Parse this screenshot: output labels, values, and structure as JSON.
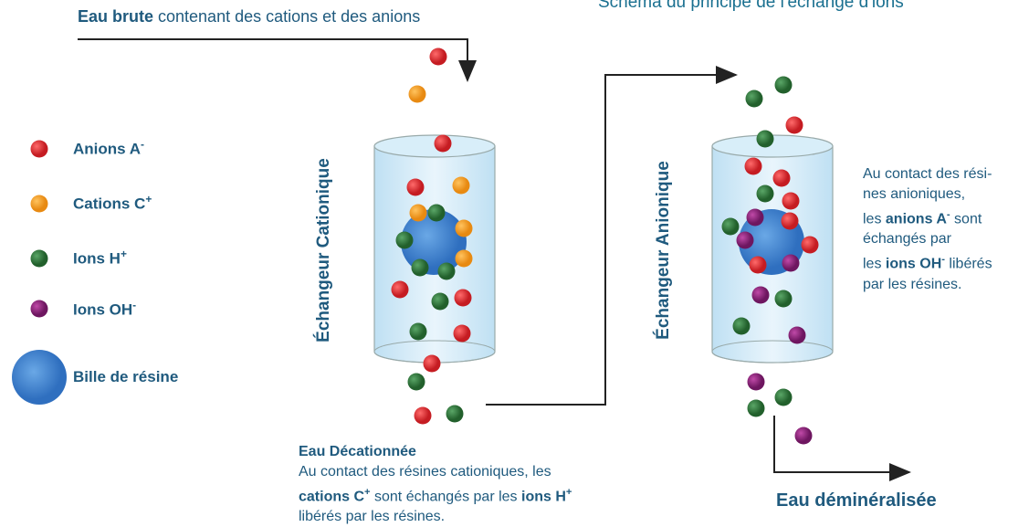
{
  "title": "Schéma du principe de l'échange d'ions",
  "intro": {
    "bold": "Eau brute",
    "text": " contenant des cations et des anions"
  },
  "legend": [
    {
      "label": "Anions A",
      "sup": "-"
    },
    {
      "label": "Cations C",
      "sup": "+"
    },
    {
      "label": "Ions H",
      "sup": "+"
    },
    {
      "label": "Ions OH",
      "sup": "-"
    },
    {
      "label": "Bille de résine"
    }
  ],
  "columns": [
    "Échangeur Cationique",
    "Échangeur Anionique"
  ],
  "cation_note": {
    "heading": "Eau Décationnée",
    "line1": "Au contact des résines cationiques, les",
    "parts": [
      "cations C",
      "+",
      " sont échangés par les ",
      "ions H",
      "+"
    ],
    "line3": "libérés par les résines."
  },
  "anion_note": {
    "lines": [
      "Au contact des rési-",
      "nes anioniques,"
    ],
    "parts": [
      "les ",
      "anions A",
      "-",
      " sont"
    ],
    "line4": "échangés par",
    "parts2": [
      "les ",
      "ions OH",
      "-",
      " libérés"
    ],
    "line6": "par les résines."
  },
  "output": "Eau déminéralisée"
}
